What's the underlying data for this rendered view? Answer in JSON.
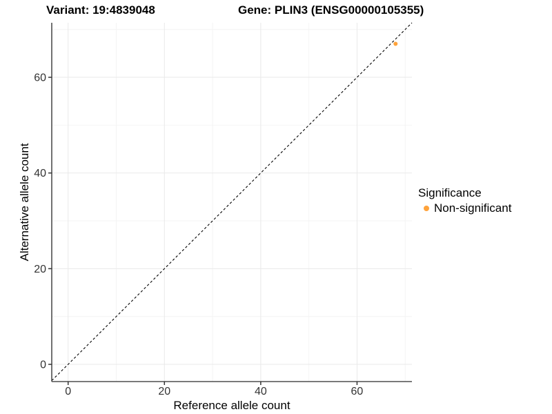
{
  "chart_data": {
    "type": "scatter",
    "title_variant": "Variant: 19:4839048",
    "title_gene": "Gene: PLIN3 (ENSG00000105355)",
    "xlabel": "Reference allele count",
    "ylabel": "Alternative allele count",
    "xlim": [
      -3.4,
      71.4
    ],
    "ylim": [
      -3.6,
      71.4
    ],
    "xticks": [
      0,
      20,
      40,
      60
    ],
    "yticks": [
      0,
      20,
      40,
      60
    ],
    "minor_xticks": [
      10,
      30,
      50,
      70
    ],
    "minor_yticks": [
      10,
      30,
      50,
      70
    ],
    "grid": true,
    "identity_line": {
      "slope": 1,
      "intercept": 0,
      "style": "dashed",
      "color": "#000000"
    },
    "series": [
      {
        "name": "Non-significant",
        "color": "#FFA33B",
        "points": [
          {
            "x": 68,
            "y": 67
          }
        ]
      }
    ],
    "legend": {
      "title": "Significance",
      "position": "right",
      "items": [
        {
          "label": "Non-significant",
          "color": "#FFA33B"
        }
      ]
    },
    "colors": {
      "grid_major": "#E9E9E9",
      "grid_minor": "#F4F4F4",
      "axis_line": "#4D4D4D",
      "tick_mark": "#333333",
      "tick_text": "#333333",
      "title_text": "#000000"
    }
  }
}
